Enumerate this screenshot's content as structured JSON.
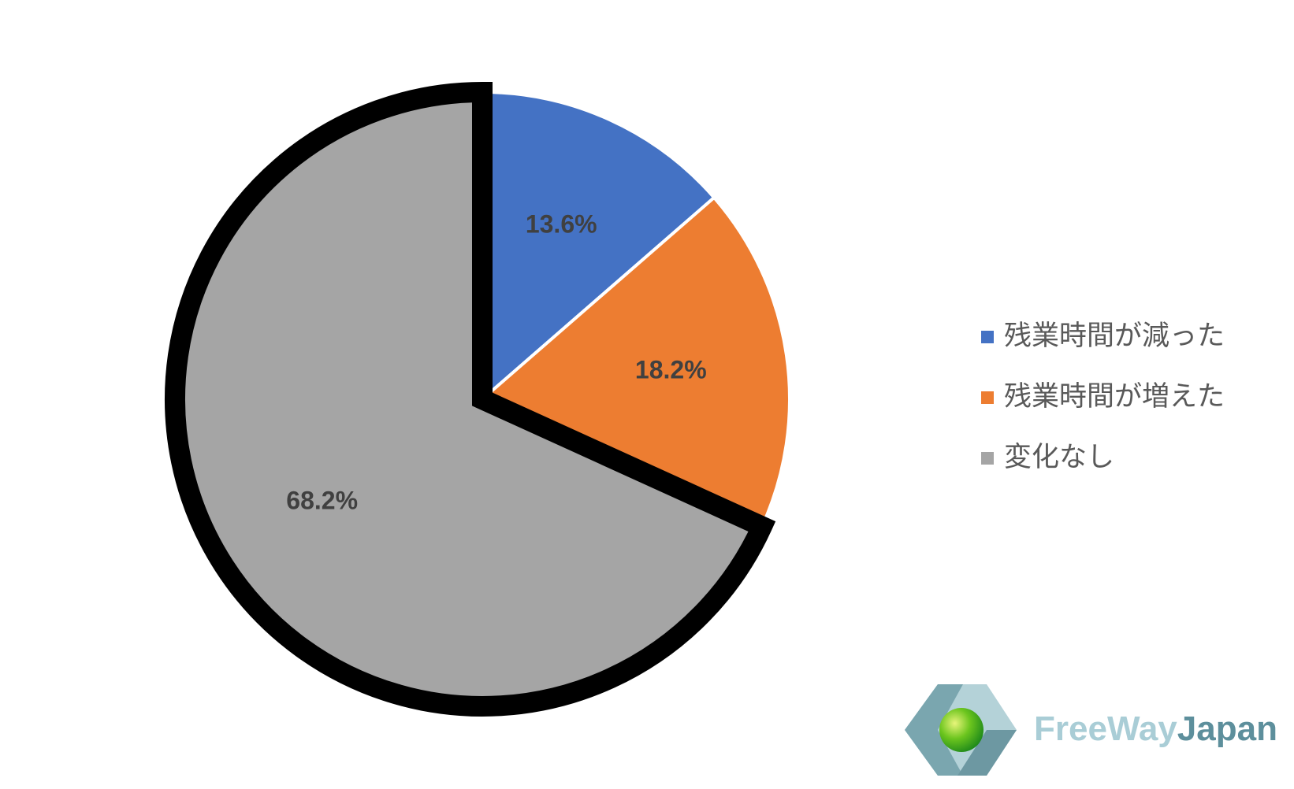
{
  "chart_data": {
    "type": "pie",
    "categories": [
      "残業時間が減った",
      "残業時間が増えた",
      "変化なし"
    ],
    "values": [
      13.6,
      18.2,
      68.2
    ],
    "value_labels": [
      "13.6%",
      "18.2%",
      "68.2%"
    ],
    "colors": [
      "#4472c4",
      "#ed7d31",
      "#a5a5a5"
    ],
    "highlight": 2,
    "legend": "right"
  },
  "logo": {
    "light": "FreeWay",
    "dark": "Japan"
  }
}
